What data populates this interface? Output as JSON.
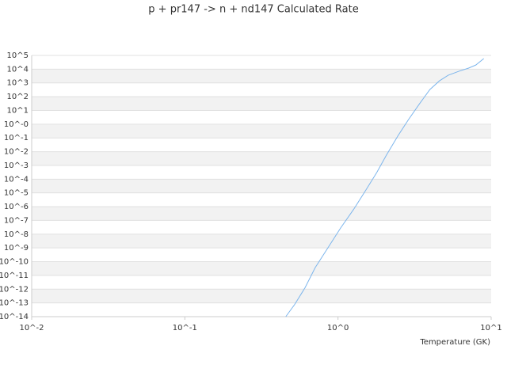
{
  "chart_data": {
    "type": "line",
    "title": "p + pr147 -> n + nd147 Calculated Rate",
    "x_label": "Temperature (GK)",
    "xscale": "log",
    "yscale": "log",
    "grid": true,
    "x": [
      0.456,
      0.52,
      0.61,
      0.71,
      0.84,
      1.04,
      1.27,
      1.52,
      1.79,
      2.07,
      2.47,
      2.89,
      3.41,
      3.98,
      4.59,
      5.24,
      6.17,
      7.13,
      7.94,
      8.95
    ],
    "series": [
      {
        "color": "#7cb5ec",
        "values": [
          1e-14,
          7.4e-14,
          1.3e-12,
          3.7e-11,
          6.9e-10,
          2.8e-08,
          6.8e-07,
          1.6e-05,
          0.0003,
          0.0056,
          0.15,
          2.2,
          31,
          330,
          1400,
          3600,
          7100,
          12000,
          20000,
          59000
        ]
      }
    ],
    "xlim": [
      0.01,
      10
    ],
    "xticks": [
      {
        "value": 0.01,
        "label": "10^-2"
      },
      {
        "value": 0.1,
        "label": "10^-1"
      },
      {
        "value": 1,
        "label": "10^0"
      },
      {
        "value": 10,
        "label": "10^1"
      }
    ],
    "ylim": [
      1e-14,
      100000
    ],
    "yticks": [
      {
        "value": 100000,
        "label": "10^5"
      },
      {
        "value": 10000,
        "label": "10^4"
      },
      {
        "value": 1000,
        "label": "10^3"
      },
      {
        "value": 100,
        "label": "10^2"
      },
      {
        "value": 10,
        "label": "10^1"
      },
      {
        "value": 1,
        "label": "10^-0"
      },
      {
        "value": 0.1,
        "label": "10^-1"
      },
      {
        "value": 0.01,
        "label": "10^-2"
      },
      {
        "value": 0.001,
        "label": "10^-3"
      },
      {
        "value": 0.0001,
        "label": "10^-4"
      },
      {
        "value": 1e-05,
        "label": "10^-5"
      },
      {
        "value": 1e-06,
        "label": "10^-6"
      },
      {
        "value": 1e-07,
        "label": "10^-7"
      },
      {
        "value": 1e-08,
        "label": "10^-8"
      },
      {
        "value": 1e-09,
        "label": "10^-9"
      },
      {
        "value": 1e-10,
        "label": "10^-10"
      },
      {
        "value": 1e-11,
        "label": "10^-11"
      },
      {
        "value": 1e-12,
        "label": "10^-12"
      },
      {
        "value": 1e-13,
        "label": "10^-13"
      },
      {
        "value": 1e-14,
        "label": "10^-14"
      }
    ]
  }
}
